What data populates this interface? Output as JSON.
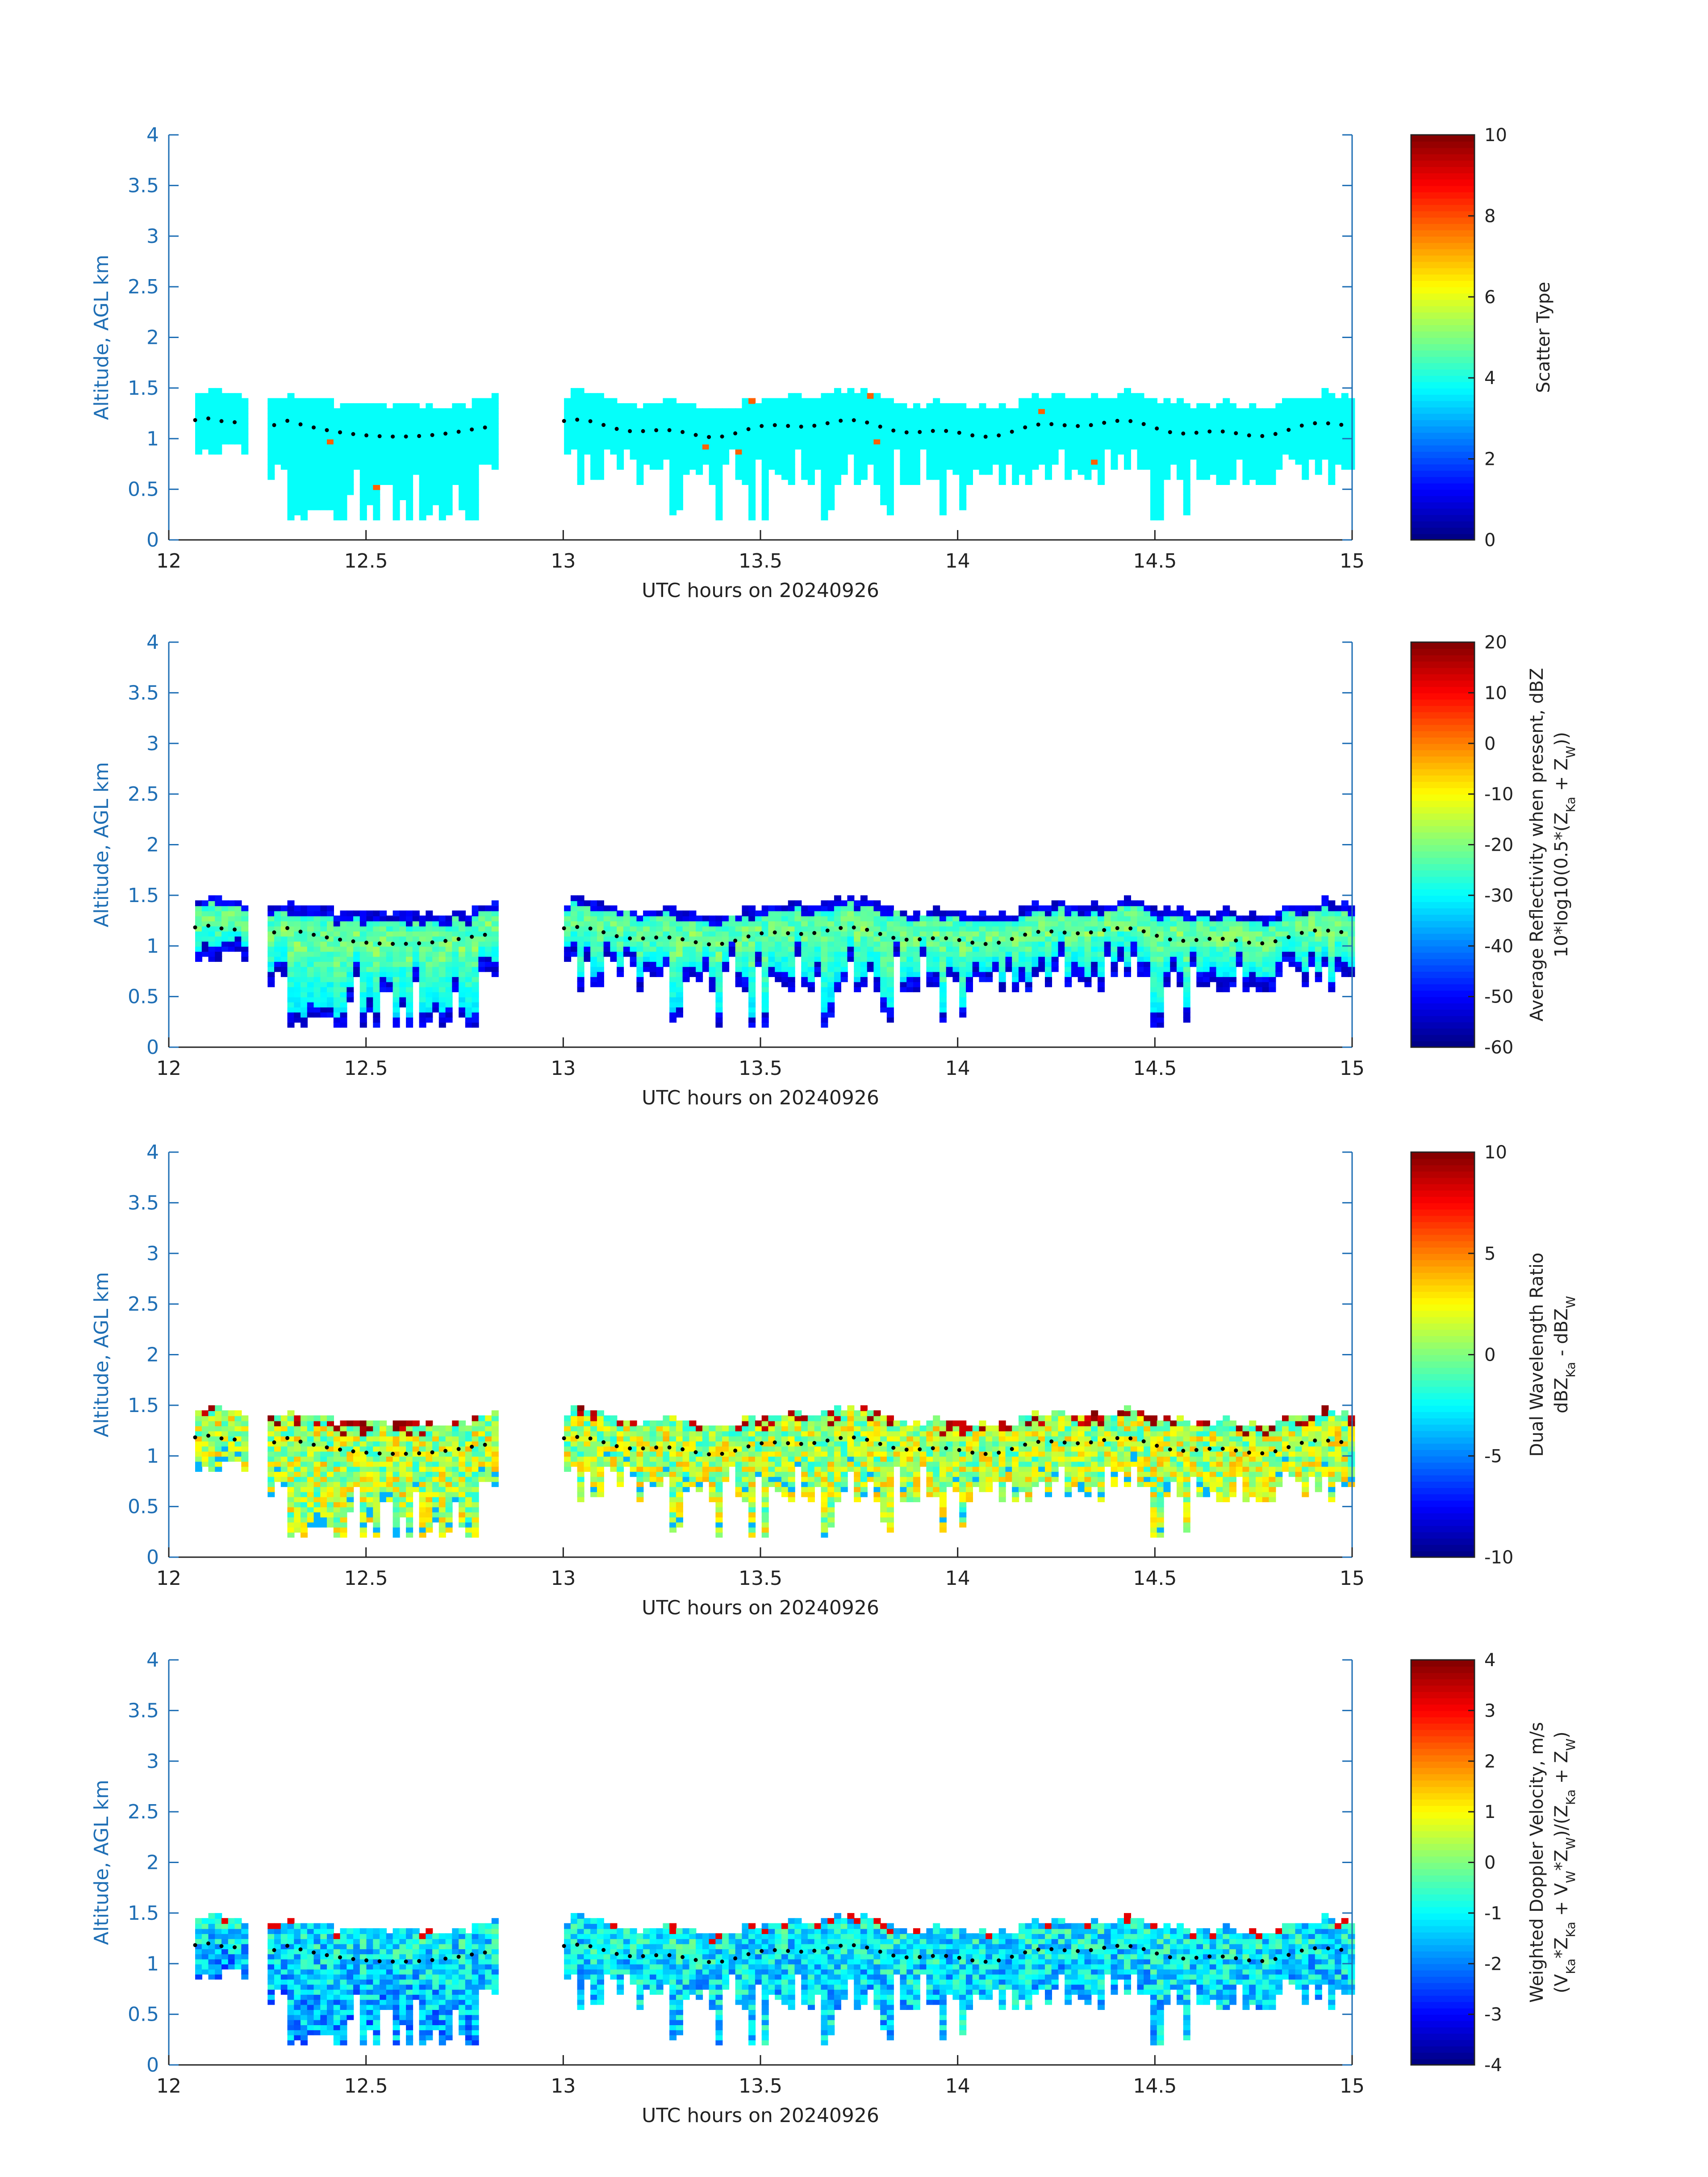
{
  "chart_data": [
    {
      "type": "heatmap",
      "xlabel": "UTC hours on 20240926",
      "ylabel": "Altitude, AGL km",
      "xlim": [
        12,
        15
      ],
      "ylim": [
        0,
        4
      ],
      "xticks": [
        "12",
        "12.5",
        "13",
        "13.5",
        "14",
        "14.5",
        "15"
      ],
      "yticks": [
        "0",
        "0.5",
        "1",
        "1.5",
        "2",
        "2.5",
        "3",
        "3.5",
        "4"
      ],
      "colorbar": {
        "label": "Scatter Type",
        "label2": "",
        "range": [
          0,
          10
        ],
        "ticks": [
          "0",
          "2",
          "4",
          "6",
          "8",
          "10"
        ]
      },
      "field": "scatter",
      "colormap": "jet",
      "markers": "cloud-top dotted line (black)"
    },
    {
      "type": "heatmap",
      "xlabel": "UTC hours on 20240926",
      "ylabel": "Altitude, AGL km",
      "xlim": [
        12,
        15
      ],
      "ylim": [
        0,
        4
      ],
      "xticks": [
        "12",
        "12.5",
        "13",
        "13.5",
        "14",
        "14.5",
        "15"
      ],
      "yticks": [
        "0",
        "0.5",
        "1",
        "1.5",
        "2",
        "2.5",
        "3",
        "3.5",
        "4"
      ],
      "colorbar": {
        "label": "Average Reflectivity when present, dBZ",
        "label2": "10*log10(0.5*(Z_Ka + Z_W))",
        "range": [
          -60,
          20
        ],
        "ticks": [
          "-60",
          "-50",
          "-40",
          "-30",
          "-20",
          "-10",
          "0",
          "10",
          "20"
        ]
      },
      "field": "refl",
      "colormap": "jet",
      "markers": "cloud-top dotted line (black)"
    },
    {
      "type": "heatmap",
      "xlabel": "UTC hours on 20240926",
      "ylabel": "Altitude, AGL km",
      "xlim": [
        12,
        15
      ],
      "ylim": [
        0,
        4
      ],
      "xticks": [
        "12",
        "12.5",
        "13",
        "13.5",
        "14",
        "14.5",
        "15"
      ],
      "yticks": [
        "0",
        "0.5",
        "1",
        "1.5",
        "2",
        "2.5",
        "3",
        "3.5",
        "4"
      ],
      "colorbar": {
        "label": "Dual Wavelength Ratio",
        "label2": "dBZ_Ka - dBZ_W",
        "range": [
          -10,
          10
        ],
        "ticks": [
          "-10",
          "-5",
          "0",
          "5",
          "10"
        ]
      },
      "field": "dwr",
      "colormap": "jet",
      "markers": "cloud-top dotted line (black)"
    },
    {
      "type": "heatmap",
      "xlabel": "UTC hours on 20240926",
      "ylabel": "Altitude, AGL km",
      "xlim": [
        12,
        15
      ],
      "ylim": [
        0,
        4
      ],
      "xticks": [
        "12",
        "12.5",
        "13",
        "13.5",
        "14",
        "14.5",
        "15"
      ],
      "yticks": [
        "0",
        "0.5",
        "1",
        "1.5",
        "2",
        "2.5",
        "3",
        "3.5",
        "4"
      ],
      "colorbar": {
        "label": "Weighted Doppler Velocity, m/s",
        "label2": "(V_Ka*Z_Ka + V_W*Z_W)/(Z_Ka + Z_W)",
        "range": [
          -4,
          4
        ],
        "ticks": [
          "-4",
          "-3",
          "-2",
          "-1",
          "0",
          "1",
          "2",
          "3",
          "4"
        ]
      },
      "field": "vel",
      "colormap": "jet",
      "markers": "cloud-top dotted line (black)"
    }
  ]
}
